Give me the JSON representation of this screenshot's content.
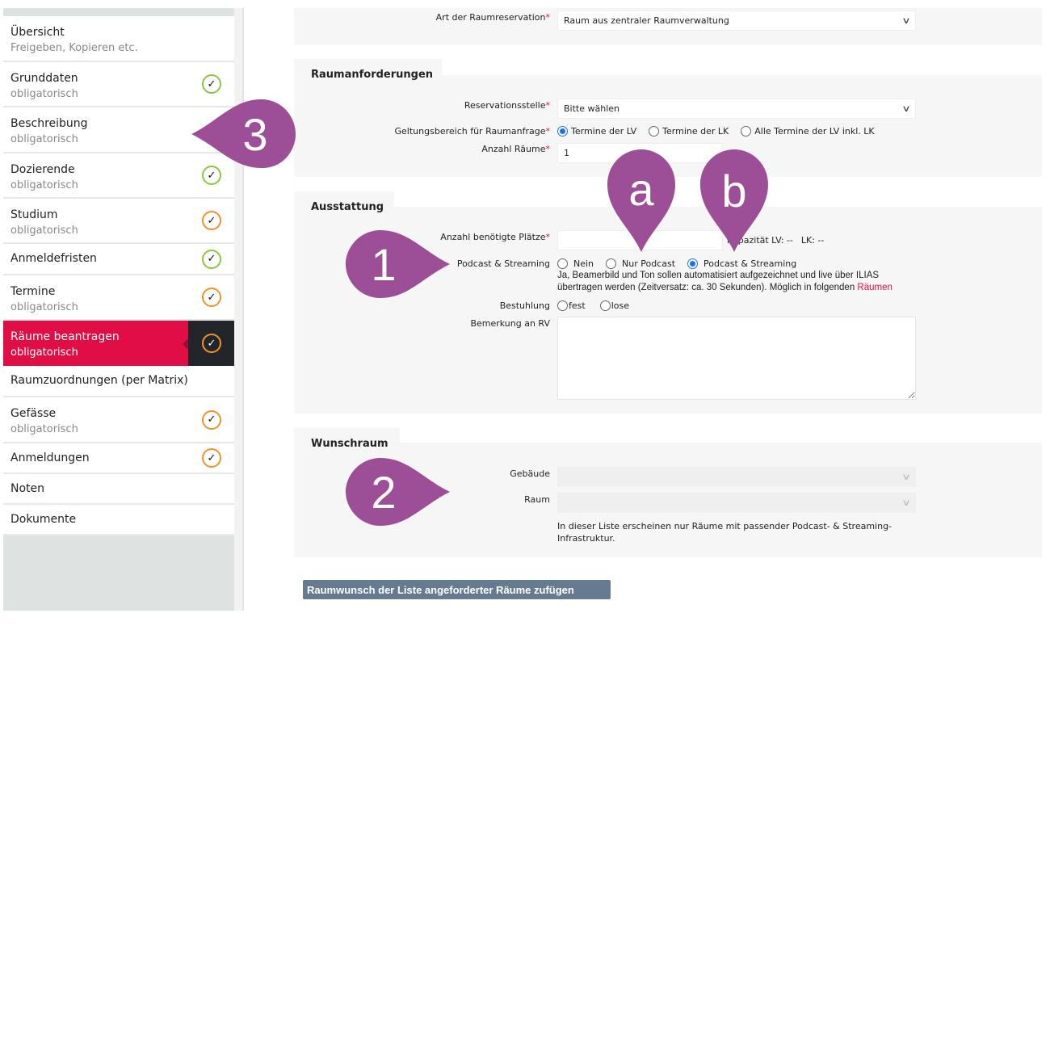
{
  "sidebar": {
    "items": [
      {
        "title": "Übersicht",
        "sub": "Freigeben, Kopieren etc."
      },
      {
        "title": "Grunddaten",
        "sub": "obligatorisch",
        "status": "complete",
        "status_color": "#8cc63f"
      },
      {
        "title": "Beschreibung",
        "sub": "obligatorisch"
      },
      {
        "title": "Dozierende",
        "sub": "obligatorisch",
        "status": "complete",
        "status_color": "#8cc63f"
      },
      {
        "title": "Studium",
        "sub": "obligatorisch",
        "status": "pending",
        "status_color": "#f39224"
      },
      {
        "title": "Anmeldefristen",
        "status": "complete",
        "status_color": "#8cc63f"
      },
      {
        "title": "Termine",
        "sub": "obligatorisch",
        "status": "pending",
        "status_color": "#f39224"
      },
      {
        "title": "Räume beantragen",
        "sub": "obligatorisch",
        "status": "pending",
        "active": true,
        "status_color": "#f39224"
      },
      {
        "title": "Raumzuordnungen (per Matrix)"
      },
      {
        "title": "Gefässe",
        "sub": "obligatorisch",
        "status": "pending",
        "status_color": "#f39224"
      },
      {
        "title": "Anmeldungen",
        "status": "pending",
        "status_color": "#f39224"
      },
      {
        "title": "Noten"
      },
      {
        "title": "Dokumente"
      }
    ],
    "check_icon": "✓",
    "active_color": "#e10e45"
  },
  "form": {
    "art": {
      "label": "Art der Raumreservation",
      "value": "Raum aus zentraler Raumverwaltung"
    },
    "raumanforderungen": {
      "title": "Raumanforderungen",
      "reservationsstelle": {
        "label": "Reservationsstelle",
        "value": "Bitte wählen"
      },
      "geltungsbereich": {
        "label": "Geltungsbereich für Raumanfrage",
        "options": [
          "Termine der LV",
          "Termine der LK",
          "Alle Termine der LV inkl. LK"
        ],
        "selected": "Termine der LV"
      },
      "anzahl_raeume": {
        "label": "Anzahl Räume",
        "value": "1"
      }
    },
    "ausstattung": {
      "title": "Ausstattung",
      "plaetze": {
        "label": "Anzahl benötigte Plätze",
        "value": "",
        "capacity": "Kapazität LV: --",
        "lk": "LK: --"
      },
      "podcast": {
        "label": "Podcast & Streaming",
        "options": [
          "Nein",
          "Nur Podcast",
          "Podcast & Streaming"
        ],
        "selected": "Podcast & Streaming",
        "help": "Ja, Beamerbild und Ton sollen automatisiert aufgezeichnet und live über ILIAS übertragen werden (Zeitversatz: ca. 30 Sekunden). Möglich in folgenden",
        "help_link": "Räumen"
      },
      "bestuhlung": {
        "label": "Bestuhlung",
        "options": [
          "fest",
          "lose"
        ]
      },
      "bemerkung": {
        "label": "Bemerkung an RV",
        "value": ""
      }
    },
    "wunschraum": {
      "title": "Wunschraum",
      "gebaeude": {
        "label": "Gebäude",
        "value": ""
      },
      "raum": {
        "label": "Raum",
        "value": ""
      },
      "hint": "In dieser Liste erscheinen nur Räume mit passender Podcast- & Streaming-Infrastruktur."
    },
    "submit_label": "Raumwunsch der Liste angeforderter Räume zufügen",
    "required_mark": "*",
    "chevron": "∨"
  },
  "annotations": {
    "color": "#9c4f96",
    "pins": [
      "3",
      "1",
      "2",
      "a",
      "b"
    ]
  }
}
